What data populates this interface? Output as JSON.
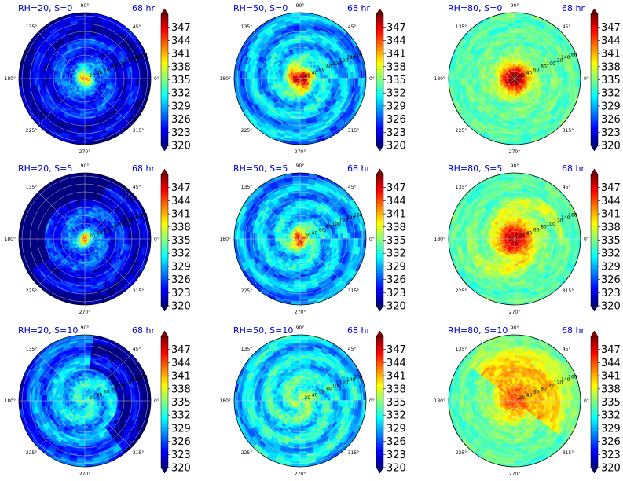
{
  "figure": {
    "title_color": "#0000cc"
  },
  "chart_data": [
    {
      "type": "heatmap",
      "title_left": "RH=20, S=0",
      "title_right": "68 hr",
      "rh": 20,
      "shear": 0,
      "theta_ticks": [
        "90°",
        "45°",
        "0°",
        "315°",
        "270°",
        "225°",
        "180°",
        "135°"
      ],
      "r_ticks": [
        "20",
        "40",
        "60",
        "80",
        "100",
        "120",
        "140",
        "160"
      ],
      "colorbar": {
        "ticks": [
          347,
          344,
          341,
          338,
          335,
          332,
          329,
          326,
          323,
          320
        ],
        "range": [
          320,
          350
        ],
        "colormap": "jet"
      }
    },
    {
      "type": "heatmap",
      "title_left": "RH=50, S=0",
      "title_right": "68 hr",
      "rh": 50,
      "shear": 0,
      "theta_ticks": [
        "90°",
        "45°",
        "0°",
        "315°",
        "270°",
        "225°",
        "180°",
        "135°"
      ],
      "r_ticks": [
        "20",
        "40",
        "60",
        "80",
        "100",
        "120",
        "140",
        "160"
      ],
      "colorbar": {
        "ticks": [
          347,
          344,
          341,
          338,
          335,
          332,
          329,
          326,
          323,
          320
        ],
        "range": [
          320,
          350
        ],
        "colormap": "jet"
      }
    },
    {
      "type": "heatmap",
      "title_left": "RH=80, S=0",
      "title_right": "68 hr",
      "rh": 80,
      "shear": 0,
      "theta_ticks": [
        "90°",
        "45°",
        "0°",
        "315°",
        "270°",
        "225°",
        "180°",
        "135°"
      ],
      "r_ticks": [
        "20",
        "40",
        "60",
        "80",
        "100",
        "120",
        "140",
        "160"
      ],
      "colorbar": {
        "ticks": [
          347,
          344,
          341,
          338,
          335,
          332,
          329,
          326,
          323,
          320
        ],
        "range": [
          320,
          350
        ],
        "colormap": "jet"
      }
    },
    {
      "type": "heatmap",
      "title_left": "RH=20, S=5",
      "title_right": "68 hr",
      "rh": 20,
      "shear": 5,
      "theta_ticks": [
        "90°",
        "45°",
        "0°",
        "315°",
        "270°",
        "225°",
        "180°",
        "135°"
      ],
      "r_ticks": [
        "20",
        "40",
        "60",
        "80",
        "100",
        "120",
        "140",
        "160"
      ],
      "colorbar": {
        "ticks": [
          347,
          344,
          341,
          338,
          335,
          332,
          329,
          326,
          323,
          320
        ],
        "range": [
          320,
          350
        ],
        "colormap": "jet"
      }
    },
    {
      "type": "heatmap",
      "title_left": "RH=50, S=5",
      "title_right": "68 hr",
      "rh": 50,
      "shear": 5,
      "theta_ticks": [
        "90°",
        "45°",
        "0°",
        "315°",
        "270°",
        "225°",
        "180°",
        "135°"
      ],
      "r_ticks": [
        "20",
        "40",
        "60",
        "80",
        "100",
        "120",
        "140",
        "160"
      ],
      "colorbar": {
        "ticks": [
          347,
          344,
          341,
          338,
          335,
          332,
          329,
          326,
          323,
          320
        ],
        "range": [
          320,
          350
        ],
        "colormap": "jet"
      }
    },
    {
      "type": "heatmap",
      "title_left": "RH=80, S=5",
      "title_right": "68 hr",
      "rh": 80,
      "shear": 5,
      "theta_ticks": [
        "90°",
        "45°",
        "0°",
        "315°",
        "270°",
        "225°",
        "180°",
        "135°"
      ],
      "r_ticks": [
        "20",
        "40",
        "60",
        "80",
        "100",
        "120",
        "140",
        "160"
      ],
      "colorbar": {
        "ticks": [
          347,
          344,
          341,
          338,
          335,
          332,
          329,
          326,
          323,
          320
        ],
        "range": [
          320,
          350
        ],
        "colormap": "jet"
      }
    },
    {
      "type": "heatmap",
      "title_left": "RH=20, S=10",
      "title_right": "68 hr",
      "rh": 20,
      "shear": 10,
      "theta_ticks": [
        "90°",
        "45°",
        "0°",
        "315°",
        "270°",
        "225°",
        "180°",
        "135°"
      ],
      "r_ticks": [
        "20",
        "40",
        "60",
        "80",
        "100",
        "120",
        "140",
        "160"
      ],
      "colorbar": {
        "ticks": [
          347,
          344,
          341,
          338,
          335,
          332,
          329,
          326,
          323,
          320
        ],
        "range": [
          320,
          350
        ],
        "colormap": "jet"
      }
    },
    {
      "type": "heatmap",
      "title_left": "RH=50, S=10",
      "title_right": "68 hr",
      "rh": 50,
      "shear": 10,
      "theta_ticks": [
        "90°",
        "45°",
        "0°",
        "315°",
        "270°",
        "225°",
        "180°",
        "135°"
      ],
      "r_ticks": [
        "20",
        "40",
        "60",
        "80",
        "100",
        "120",
        "140",
        "160"
      ],
      "colorbar": {
        "ticks": [
          347,
          344,
          341,
          338,
          335,
          332,
          329,
          326,
          323,
          320
        ],
        "range": [
          320,
          350
        ],
        "colormap": "jet"
      }
    },
    {
      "type": "heatmap",
      "title_left": "RH=80, S=10",
      "title_right": "68 hr",
      "rh": 80,
      "shear": 10,
      "theta_ticks": [
        "90°",
        "45°",
        "0°",
        "315°",
        "270°",
        "225°",
        "180°",
        "135°"
      ],
      "r_ticks": [
        "20",
        "40",
        "60",
        "80",
        "100",
        "120",
        "140",
        "160"
      ],
      "colorbar": {
        "ticks": [
          347,
          344,
          341,
          338,
          335,
          332,
          329,
          326,
          323,
          320
        ],
        "range": [
          320,
          350
        ],
        "colormap": "jet"
      }
    }
  ]
}
